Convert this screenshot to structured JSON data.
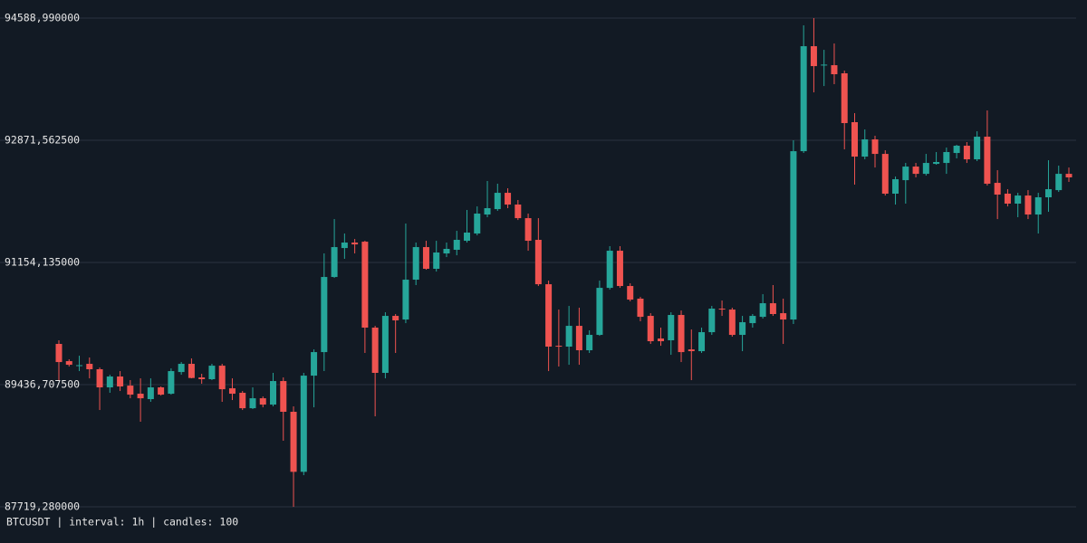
{
  "chart_data": {
    "type": "candlestick",
    "footer": "BTCUSDT | interval: 1h | candles: 100",
    "up_color": "#26a69a",
    "down_color": "#ef5350",
    "grid": true,
    "ylim": [
      87719.28,
      94588.99
    ],
    "yticks": [
      {
        "value": 87719.28,
        "label": "87719,280000"
      },
      {
        "value": 89436.7075,
        "label": "89436,707500"
      },
      {
        "value": 91154.135,
        "label": "91154,135000"
      },
      {
        "value": 92871.5625,
        "label": "92871,562500"
      },
      {
        "value": 94588.99,
        "label": "94588,990000"
      }
    ],
    "open": [
      90009,
      89767,
      89703,
      89729,
      89653,
      89398,
      89551,
      89423,
      89309,
      89233,
      89398,
      89309,
      89614,
      89729,
      89538,
      89513,
      89703,
      89385,
      89322,
      89105,
      89245,
      89156,
      89487,
      89055,
      88211,
      89563,
      89894,
      90950,
      91357,
      91434,
      91446,
      90238,
      89602,
      90403,
      90352,
      90912,
      91370,
      91065,
      91281,
      91332,
      91459,
      91561,
      91828,
      91904,
      92133,
      91968,
      91777,
      91472,
      90848,
      89983,
      89971,
      90263,
      89920,
      90136,
      90797,
      91319,
      90823,
      90645,
      90403,
      90085,
      90060,
      90416,
      89932,
      89907,
      90174,
      90505,
      90492,
      90136,
      90301,
      90390,
      90581,
      90441,
      90352,
      92718,
      94194,
      93927,
      93927,
      93813,
      93126,
      92642,
      92884,
      92680,
      92121,
      92311,
      92502,
      92400,
      92540,
      92553,
      92693,
      92795,
      92604,
      92922,
      92273,
      92121,
      91981,
      92095,
      91828,
      92070,
      92171,
      92400
    ],
    "high": [
      90060,
      89793,
      89843,
      89818,
      89678,
      89576,
      89627,
      89500,
      89525,
      89525,
      89411,
      89665,
      89754,
      89805,
      89589,
      89729,
      89729,
      89525,
      89347,
      89398,
      89271,
      89602,
      89538,
      89131,
      89602,
      89932,
      91281,
      91764,
      91561,
      91484,
      91459,
      90263,
      90454,
      90429,
      91701,
      91434,
      91459,
      91459,
      91434,
      91599,
      91892,
      91942,
      92299,
      92261,
      92197,
      92032,
      91841,
      91777,
      90899,
      90492,
      90543,
      90518,
      90200,
      90899,
      91383,
      91383,
      90861,
      90670,
      90441,
      90238,
      90454,
      90479,
      90212,
      90238,
      90543,
      90619,
      90518,
      90403,
      90429,
      90708,
      90836,
      90645,
      92871,
      94487,
      94589,
      94143,
      94232,
      93851,
      93253,
      93024,
      92935,
      92731,
      92362,
      92553,
      92553,
      92680,
      92706,
      92769,
      92808,
      92846,
      92998,
      93291,
      92451,
      92184,
      92133,
      92171,
      92133,
      92591,
      92515,
      92489
    ],
    "low": [
      89500,
      89691,
      89627,
      89525,
      89080,
      89322,
      89347,
      89245,
      88915,
      89195,
      89283,
      89296,
      89576,
      89525,
      89449,
      89500,
      89195,
      89220,
      89080,
      89093,
      89118,
      89131,
      88648,
      87719,
      88164,
      89118,
      89627,
      90937,
      91205,
      91281,
      89882,
      88991,
      89525,
      89882,
      90301,
      90836,
      91052,
      91026,
      91230,
      91255,
      91434,
      91535,
      91790,
      91879,
      91917,
      91751,
      91319,
      90823,
      89627,
      89691,
      89716,
      89716,
      89882,
      90123,
      90772,
      90797,
      90607,
      90327,
      90009,
      89983,
      89856,
      89754,
      89500,
      89882,
      90136,
      90403,
      90111,
      89907,
      90238,
      90365,
      90403,
      90009,
      90289,
      92693,
      93545,
      93634,
      93660,
      92744,
      92248,
      92604,
      92489,
      92095,
      91968,
      91981,
      92350,
      92375,
      92528,
      92400,
      92617,
      92553,
      92579,
      92235,
      91764,
      91942,
      91790,
      91764,
      91561,
      91866,
      92146,
      92286
    ],
    "close": [
      89754,
      89716,
      89710,
      89653,
      89398,
      89551,
      89411,
      89296,
      89245,
      89398,
      89296,
      89627,
      89729,
      89530,
      89513,
      89703,
      89372,
      89309,
      89105,
      89245,
      89156,
      89487,
      89055,
      88211,
      89563,
      89894,
      90950,
      91370,
      91434,
      91408,
      90238,
      89602,
      90403,
      90340,
      90912,
      91370,
      91065,
      91294,
      91345,
      91472,
      91574,
      91841,
      91917,
      92133,
      91968,
      91777,
      91459,
      90848,
      89971,
      89971,
      90263,
      89920,
      90136,
      90797,
      91319,
      90823,
      90632,
      90390,
      90047,
      90047,
      90416,
      89894,
      89907,
      90174,
      90505,
      90492,
      90136,
      90314,
      90403,
      90581,
      90429,
      90352,
      92718,
      94194,
      93914,
      93935,
      93800,
      93113,
      92642,
      92884,
      92680,
      92121,
      92324,
      92502,
      92400,
      92553,
      92566,
      92706,
      92795,
      92604,
      92922,
      92261,
      92108,
      91981,
      92095,
      91828,
      92070,
      92184,
      92400,
      92350
    ]
  }
}
